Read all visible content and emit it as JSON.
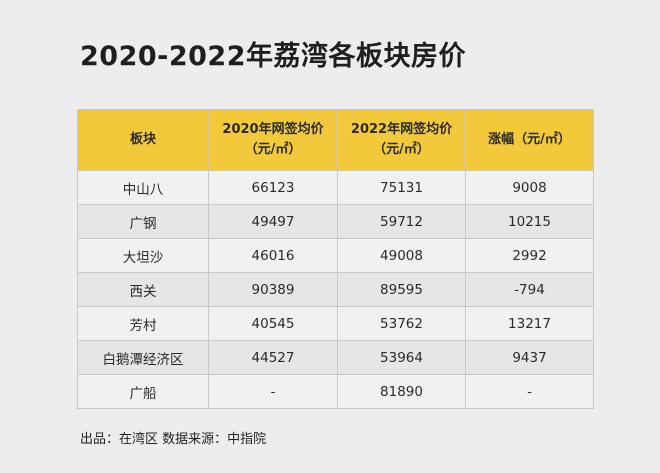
{
  "title": "2020-2022年荔湾各板块房价",
  "source": "出品：在湾区  数据来源：中指院",
  "chart_data": {
    "type": "table",
    "columns": [
      "板块",
      "2020年网签均价\n（元/㎡）",
      "2022年网签均价\n（元/㎡）",
      "涨幅（元/㎡）"
    ],
    "rows": [
      [
        "中山八",
        "66123",
        "75131",
        "9008"
      ],
      [
        "广钢",
        "49497",
        "59712",
        "10215"
      ],
      [
        "大坦沙",
        "46016",
        "49008",
        "2992"
      ],
      [
        "西关",
        "90389",
        "89595",
        "-794"
      ],
      [
        "芳村",
        "40545",
        "53762",
        "13217"
      ],
      [
        "白鹅潭经济区",
        "44527",
        "53964",
        "9437"
      ],
      [
        "广船",
        "-",
        "81890",
        "-"
      ]
    ],
    "header_color": "#f2c93a"
  }
}
